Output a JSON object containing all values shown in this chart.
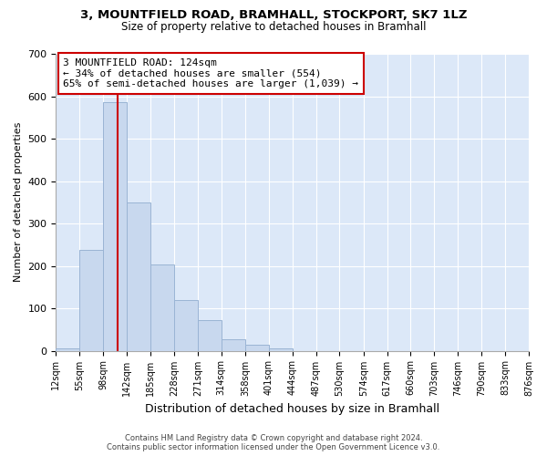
{
  "title1": "3, MOUNTFIELD ROAD, BRAMHALL, STOCKPORT, SK7 1LZ",
  "title2": "Size of property relative to detached houses in Bramhall",
  "xlabel": "Distribution of detached houses by size in Bramhall",
  "ylabel": "Number of detached properties",
  "bin_edges": [
    12,
    55,
    98,
    142,
    185,
    228,
    271,
    314,
    358,
    401,
    444,
    487,
    530,
    574,
    617,
    660,
    703,
    746,
    790,
    833,
    876
  ],
  "counts": [
    5,
    238,
    585,
    350,
    203,
    119,
    73,
    27,
    14,
    5,
    0,
    0,
    0,
    0,
    0,
    0,
    0,
    0,
    0,
    0
  ],
  "bar_color": "#c8d8ee",
  "bar_edge_color": "#9ab4d4",
  "property_size": 124,
  "property_line_color": "#cc0000",
  "annotation_line1": "3 MOUNTFIELD ROAD: 124sqm",
  "annotation_line2": "← 34% of detached houses are smaller (554)",
  "annotation_line3": "65% of semi-detached houses are larger (1,039) →",
  "annotation_box_facecolor": "#ffffff",
  "annotation_box_edgecolor": "#cc0000",
  "ylim": [
    0,
    700
  ],
  "yticks": [
    0,
    100,
    200,
    300,
    400,
    500,
    600,
    700
  ],
  "tick_labels": [
    "12sqm",
    "55sqm",
    "98sqm",
    "142sqm",
    "185sqm",
    "228sqm",
    "271sqm",
    "314sqm",
    "358sqm",
    "401sqm",
    "444sqm",
    "487sqm",
    "530sqm",
    "574sqm",
    "617sqm",
    "660sqm",
    "703sqm",
    "746sqm",
    "790sqm",
    "833sqm",
    "876sqm"
  ],
  "footnote1": "Contains HM Land Registry data © Crown copyright and database right 2024.",
  "footnote2": "Contains public sector information licensed under the Open Government Licence v3.0.",
  "background_color": "#ffffff",
  "plot_bg_color": "#dce8f8",
  "grid_color": "#ffffff"
}
